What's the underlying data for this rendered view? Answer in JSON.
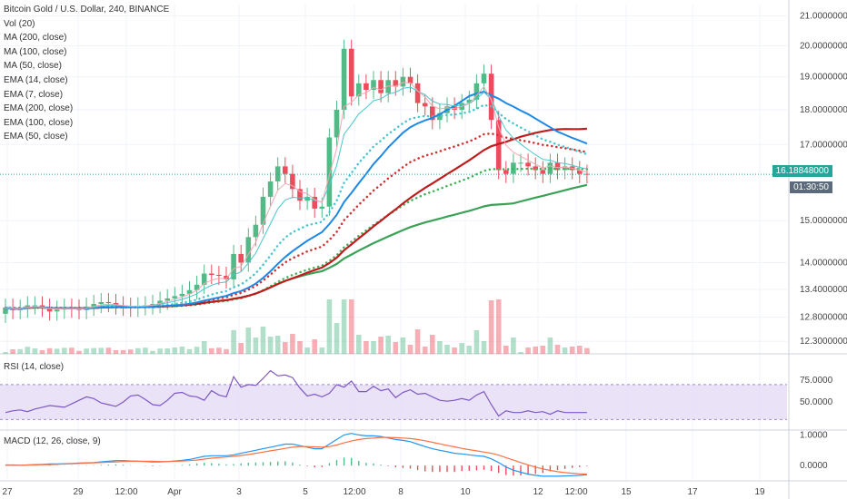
{
  "header": {
    "symbol": "Bitcoin Gold / U.S. Dollar, 240, BINANCE"
  },
  "legend": [
    "Vol (20)",
    "MA (200, close)",
    "MA (100, close)",
    "MA (50, close)",
    "EMA (14, close)",
    "EMA (7, close)",
    "EMA (200, close)",
    "EMA (100, close)",
    "EMA (50, close)"
  ],
  "price_tag": {
    "value": "16.18848000",
    "countdown": "01:30:50",
    "color": "#26a69a"
  },
  "rsi_title": "RSI (14, close)",
  "macd_title": "MACD (12, 26, close, 9)",
  "colors": {
    "up": "#53b987",
    "down": "#eb4d5c",
    "grid": "#f0f3fa",
    "rsi_band": "#e1d7f5"
  },
  "chart_data": [
    {
      "type": "candlestick",
      "title": "Bitcoin Gold / U.S. Dollar, 240, BINANCE",
      "y_tick_labels": [
        "21.00000000",
        "20.00000000",
        "19.00000000",
        "18.00000000",
        "17.00000000",
        "15.00000000",
        "14.00000000",
        "13.40000000",
        "12.80000000",
        "12.30000000"
      ],
      "y_ticks": [
        21.0,
        20.0,
        19.0,
        18.0,
        17.0,
        15.0,
        14.0,
        13.4,
        12.8,
        12.3
      ],
      "ylim": [
        12.05,
        21.4
      ],
      "log_scale": true,
      "x_tick_labels": [
        "27",
        "29",
        "12:00",
        "Apr",
        "3",
        "5",
        "12:00",
        "8",
        "10",
        "12",
        "12:00",
        "15",
        "17",
        "19"
      ],
      "closes": [
        13.0,
        12.95,
        12.98,
        13.05,
        13.05,
        13.0,
        12.92,
        12.96,
        13.0,
        12.98,
        12.95,
        13.02,
        13.08,
        13.12,
        13.1,
        13.05,
        13.02,
        13.0,
        13.03,
        13.05,
        13.08,
        13.15,
        13.2,
        13.25,
        13.3,
        13.38,
        13.5,
        13.75,
        13.72,
        13.7,
        13.62,
        14.2,
        14.0,
        14.6,
        14.9,
        15.6,
        16.0,
        16.4,
        16.2,
        15.8,
        15.5,
        15.6,
        15.3,
        15.35,
        17.2,
        18.0,
        19.9,
        18.4,
        18.8,
        18.6,
        18.9,
        18.5,
        18.9,
        18.7,
        19.0,
        18.8,
        18.2,
        18.1,
        17.7,
        17.9,
        18.1,
        18.0,
        18.2,
        18.3,
        18.8,
        19.1,
        17.7,
        16.3,
        16.2,
        16.5,
        16.5,
        16.4,
        16.3,
        16.2,
        16.5,
        16.3,
        16.4,
        16.3,
        16.2,
        16.19
      ],
      "volume_label": "Vol (20)",
      "ma_labels": [
        "MA (200, close)",
        "MA (100, close)",
        "MA (50, close)"
      ],
      "ema_labels": [
        "EMA (14, close)",
        "EMA (7, close)",
        "EMA (200, close)",
        "EMA (100, close)",
        "EMA (50, close)"
      ],
      "current_price": 16.18848
    },
    {
      "type": "line",
      "title": "RSI (14, close)",
      "y_tick_labels": [
        "75.0000",
        "50.0000"
      ],
      "ylim": [
        20,
        100
      ],
      "band": [
        30,
        70
      ],
      "values": [
        38,
        40,
        41,
        39,
        42,
        44,
        46,
        45,
        44,
        48,
        52,
        56,
        54,
        49,
        47,
        45,
        50,
        57,
        58,
        53,
        47,
        46,
        52,
        60,
        61,
        57,
        56,
        52,
        63,
        58,
        56,
        79,
        67,
        70,
        69,
        77,
        86,
        80,
        81,
        78,
        66,
        57,
        59,
        56,
        60,
        70,
        67,
        74,
        62,
        62,
        68,
        63,
        65,
        55,
        61,
        64,
        59,
        60,
        56,
        52,
        51,
        52,
        54,
        52,
        58,
        62,
        47,
        34,
        40,
        38,
        38,
        40,
        38,
        39,
        36,
        40,
        38,
        38,
        38,
        38
      ]
    },
    {
      "type": "line",
      "title": "MACD (12, 26, close, 9)",
      "y_tick_labels": [
        "1.0000",
        "0.0000"
      ],
      "ylim": [
        -0.5,
        1.1
      ],
      "macd": [
        0.02,
        0.02,
        0.01,
        0.02,
        0.03,
        0.04,
        0.05,
        0.05,
        0.06,
        0.07,
        0.08,
        0.09,
        0.1,
        0.12,
        0.14,
        0.16,
        0.16,
        0.15,
        0.14,
        0.13,
        0.12,
        0.12,
        0.13,
        0.15,
        0.17,
        0.2,
        0.25,
        0.3,
        0.32,
        0.32,
        0.32,
        0.35,
        0.4,
        0.45,
        0.5,
        0.55,
        0.6,
        0.65,
        0.7,
        0.7,
        0.65,
        0.6,
        0.55,
        0.55,
        0.7,
        0.85,
        1.0,
        1.05,
        1.0,
        0.97,
        0.97,
        0.95,
        0.9,
        0.85,
        0.82,
        0.78,
        0.7,
        0.62,
        0.55,
        0.5,
        0.45,
        0.4,
        0.38,
        0.35,
        0.32,
        0.3,
        0.22,
        0.1,
        -0.05,
        -0.15,
        -0.22,
        -0.28,
        -0.32,
        -0.35,
        -0.35,
        -0.35,
        -0.34,
        -0.33,
        -0.32,
        -0.3
      ],
      "signal": [
        0.01,
        0.01,
        0.01,
        0.02,
        0.02,
        0.03,
        0.03,
        0.04,
        0.05,
        0.06,
        0.07,
        0.08,
        0.09,
        0.1,
        0.11,
        0.12,
        0.13,
        0.14,
        0.14,
        0.14,
        0.14,
        0.13,
        0.13,
        0.14,
        0.15,
        0.16,
        0.18,
        0.21,
        0.24,
        0.26,
        0.28,
        0.3,
        0.33,
        0.36,
        0.4,
        0.44,
        0.48,
        0.52,
        0.56,
        0.6,
        0.62,
        0.62,
        0.61,
        0.6,
        0.62,
        0.67,
        0.74,
        0.8,
        0.85,
        0.88,
        0.9,
        0.92,
        0.92,
        0.91,
        0.9,
        0.88,
        0.85,
        0.81,
        0.76,
        0.71,
        0.66,
        0.61,
        0.56,
        0.52,
        0.48,
        0.44,
        0.4,
        0.34,
        0.26,
        0.18,
        0.1,
        0.02,
        -0.05,
        -0.11,
        -0.16,
        -0.2,
        -0.23,
        -0.25,
        -0.27,
        -0.28
      ]
    }
  ]
}
